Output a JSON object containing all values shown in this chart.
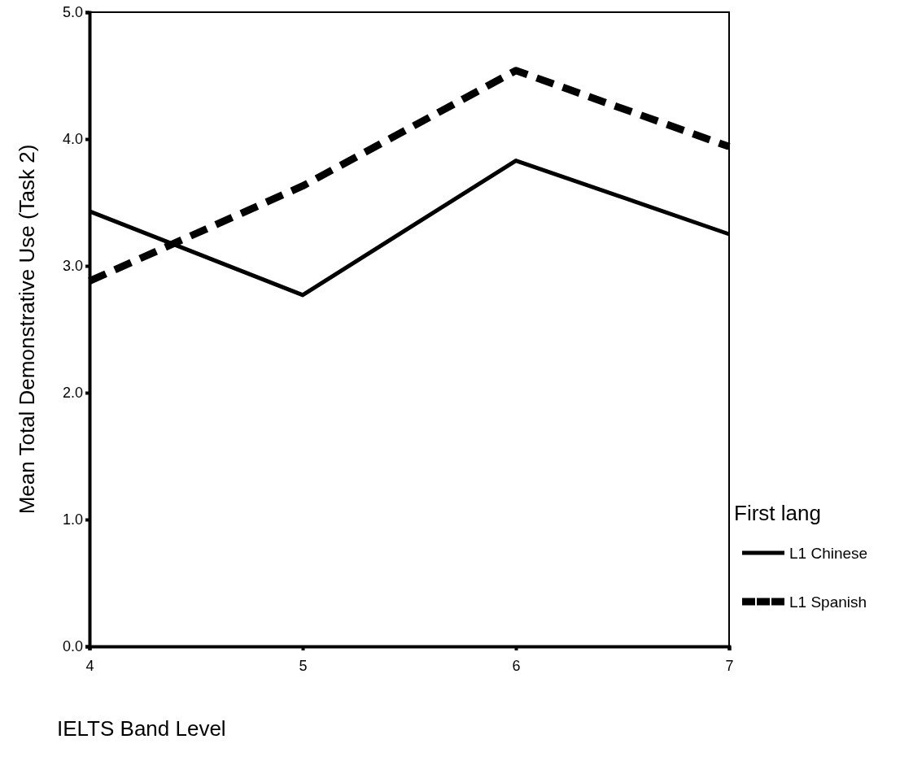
{
  "chart_data": {
    "type": "line",
    "xlabel": "IELTS Band Level",
    "ylabel": "Mean Total Demonstrative Use (Task 2)",
    "legend_title": "First lang",
    "legend": "right",
    "grid": false,
    "marker": "none",
    "x": [
      4,
      5,
      6,
      7
    ],
    "xlim": [
      4,
      7
    ],
    "xticks": [
      4,
      5,
      6,
      7
    ],
    "ylim": [
      0,
      5
    ],
    "yticks": [
      {
        "value": 0,
        "label": "0.0"
      },
      {
        "value": 1,
        "label": "1.0"
      },
      {
        "value": 2,
        "label": "2.0"
      },
      {
        "value": 3,
        "label": "3.0"
      },
      {
        "value": 4,
        "label": "4.0"
      },
      {
        "value": 5,
        "label": "5.0"
      }
    ],
    "series": [
      {
        "name": "L1 Chinese",
        "color": "#000000",
        "line_style": "solid",
        "values": [
          3.43,
          2.77,
          3.83,
          3.25
        ]
      },
      {
        "name": "L1 Spanish",
        "color": "#000000",
        "line_style": "dashed",
        "values": [
          2.88,
          3.63,
          4.54,
          3.94
        ]
      }
    ]
  }
}
